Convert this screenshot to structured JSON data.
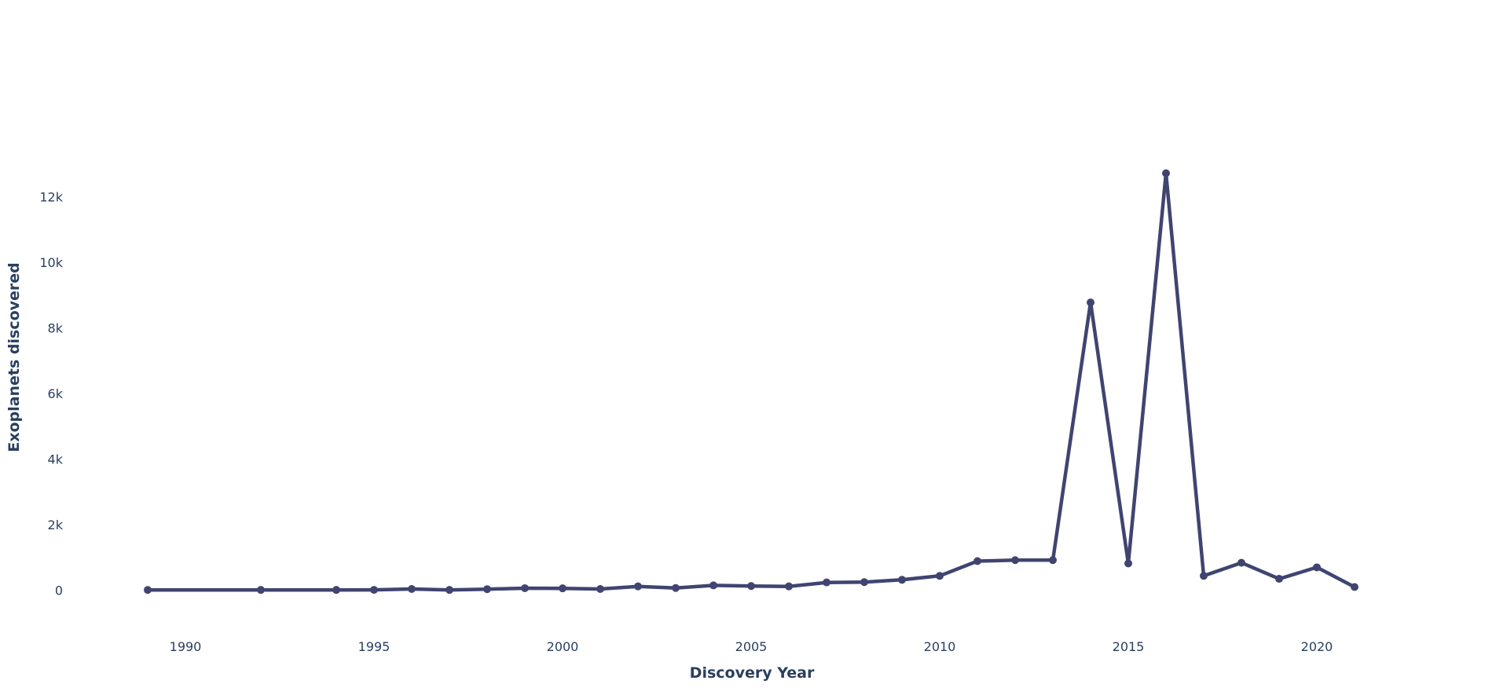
{
  "chart_data": {
    "type": "line",
    "title": "",
    "xlabel": "Discovery Year",
    "ylabel": "Exoplanets discovered",
    "xlim": [
      1987,
      2024
    ],
    "ylim": [
      -1000,
      15600
    ],
    "x_ticks": [
      1990,
      1995,
      2000,
      2005,
      2010,
      2015,
      2020
    ],
    "y_ticks": [
      0,
      2000,
      4000,
      6000,
      8000,
      10000,
      12000
    ],
    "y_tick_labels": [
      "0",
      "2k",
      "4k",
      "6k",
      "8k",
      "10k",
      "12k"
    ],
    "grid": false,
    "line_color": "#404470",
    "series": [
      {
        "x": [
          1989,
          1992,
          1994,
          1995,
          1996,
          1997,
          1998,
          1999,
          2000,
          2001,
          2002,
          2003,
          2004,
          2005,
          2006,
          2007,
          2008,
          2009,
          2010,
          2011,
          2012,
          2013,
          2014,
          2015,
          2016,
          2017,
          2018,
          2019,
          2020,
          2021
        ],
        "y": [
          1,
          2,
          2,
          3,
          30,
          2,
          25,
          55,
          50,
          30,
          110,
          60,
          140,
          120,
          110,
          230,
          240,
          310,
          430,
          880,
          910,
          910,
          8770,
          810,
          12710,
          430,
          830,
          340,
          690,
          90
        ]
      }
    ]
  }
}
